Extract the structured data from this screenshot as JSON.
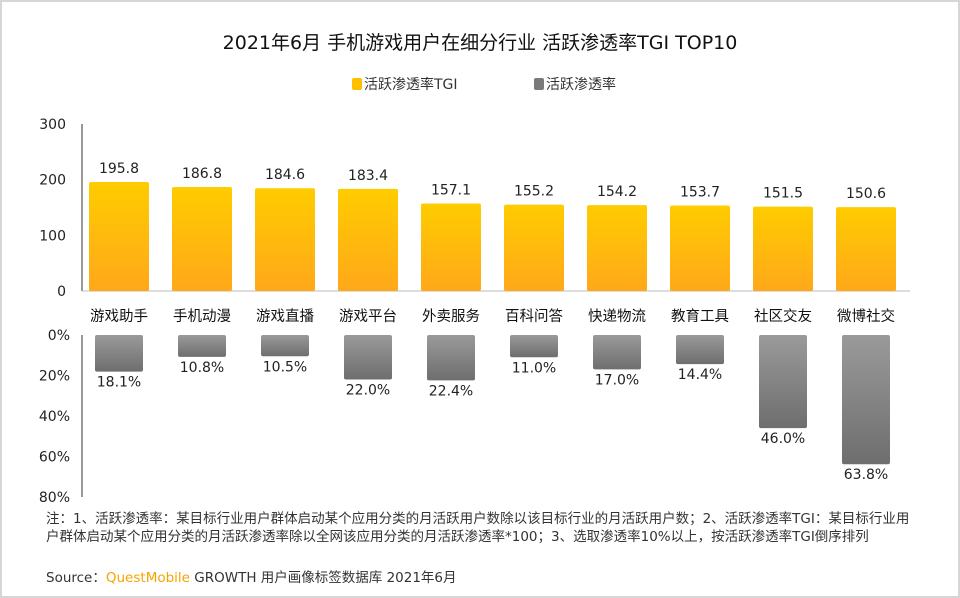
{
  "title": "2021年6月 手机游戏用户在细分行业 活跃渗透率TGI TOP10",
  "legend": [
    {
      "label": "活跃渗透率TGI",
      "color": "#FFC000"
    },
    {
      "label": "活跃渗透率",
      "color": "#7a7a7a"
    }
  ],
  "chart_data": [
    {
      "type": "bar",
      "categories": [
        "游戏助手",
        "手机动漫",
        "游戏直播",
        "游戏平台",
        "外卖服务",
        "百科问答",
        "快递物流",
        "教育工具",
        "社区交友",
        "微博社交"
      ],
      "series": [
        {
          "name": "活跃渗透率TGI",
          "values": [
            195.8,
            186.8,
            184.6,
            183.4,
            157.1,
            155.2,
            154.2,
            153.7,
            151.5,
            150.6
          ]
        }
      ],
      "data_labels": [
        "195.8",
        "186.8",
        "184.6",
        "183.4",
        "157.1",
        "155.2",
        "154.2",
        "153.7",
        "151.5",
        "150.6"
      ],
      "yticks": [
        "300",
        "200",
        "100",
        "0"
      ],
      "ylim": [
        0,
        300
      ]
    },
    {
      "type": "bar",
      "orientation": "downward",
      "categories": [
        "游戏助手",
        "手机动漫",
        "游戏直播",
        "游戏平台",
        "外卖服务",
        "百科问答",
        "快递物流",
        "教育工具",
        "社区交友",
        "微博社交"
      ],
      "series": [
        {
          "name": "活跃渗透率",
          "values": [
            18.1,
            10.8,
            10.5,
            22.0,
            22.4,
            11.0,
            17.0,
            14.4,
            46.0,
            63.8
          ]
        }
      ],
      "data_labels": [
        "18.1%",
        "10.8%",
        "10.5%",
        "22.0%",
        "22.4%",
        "11.0%",
        "17.0%",
        "14.4%",
        "46.0%",
        "63.8%"
      ],
      "yticks": [
        "0%",
        "20%",
        "40%",
        "60%",
        "80%"
      ],
      "ylim": [
        0,
        80
      ]
    }
  ],
  "note": "注：1、活跃渗透率：某目标行业用户群体启动某个应用分类的月活跃用户数除以该目标行业的月活跃用户数；2、活跃渗透率TGI：某目标行业用户群体启动某个应用分类的月活跃渗透率除以全网该应用分类的月活跃渗透率*100；3、选取渗透率10%以上，按活跃渗透率TGI倒序排列",
  "source": {
    "prefix": "Source：",
    "brand": "QuestMobile",
    "rest": " GROWTH 用户画像标签数据库 2021年6月"
  }
}
